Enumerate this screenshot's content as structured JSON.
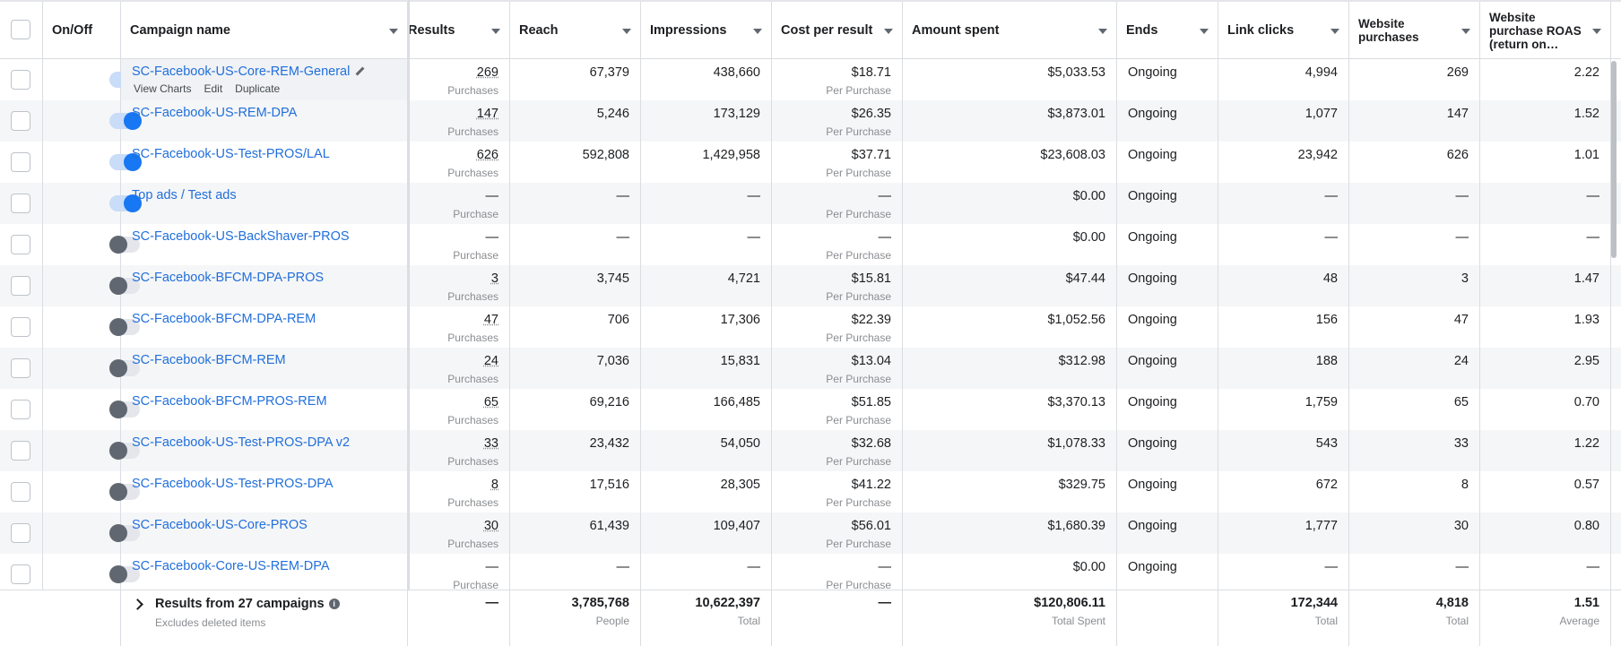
{
  "header": {
    "onoff": "On/Off",
    "campaign": "Campaign name",
    "results": "Results",
    "reach": "Reach",
    "impressions": "Impressions",
    "cost_per_result": "Cost per result",
    "amount_spent": "Amount spent",
    "ends": "Ends",
    "link_clicks": "Link clicks",
    "website_purchases": "Website purchases",
    "website_roas": "Website purchase ROAS (return on…"
  },
  "row_actions": {
    "view_charts": "View Charts",
    "edit": "Edit",
    "duplicate": "Duplicate"
  },
  "rows": [
    {
      "on": true,
      "name": "SC-Facebook-US-Core-REM-General",
      "results": "269",
      "results_unit": "Purchases",
      "reach": "67,379",
      "impressions": "438,660",
      "cpr": "$18.71",
      "cpr_unit": "Per Purchase",
      "spent": "$5,033.53",
      "ends": "Ongoing",
      "clicks": "4,994",
      "purchases": "269",
      "roas": "2.22"
    },
    {
      "on": true,
      "name": "SC-Facebook-US-REM-DPA",
      "results": "147",
      "results_unit": "Purchases",
      "reach": "5,246",
      "impressions": "173,129",
      "cpr": "$26.35",
      "cpr_unit": "Per Purchase",
      "spent": "$3,873.01",
      "ends": "Ongoing",
      "clicks": "1,077",
      "purchases": "147",
      "roas": "1.52"
    },
    {
      "on": true,
      "name": "SC-Facebook-US-Test-PROS/LAL",
      "results": "626",
      "results_unit": "Purchases",
      "reach": "592,808",
      "impressions": "1,429,958",
      "cpr": "$37.71",
      "cpr_unit": "Per Purchase",
      "spent": "$23,608.03",
      "ends": "Ongoing",
      "clicks": "23,942",
      "purchases": "626",
      "roas": "1.01"
    },
    {
      "on": true,
      "name": "Top ads / Test ads",
      "results": "—",
      "results_unit": "Purchase",
      "reach": "—",
      "impressions": "—",
      "cpr": "—",
      "cpr_unit": "Per Purchase",
      "spent": "$0.00",
      "ends": "Ongoing",
      "clicks": "—",
      "purchases": "—",
      "roas": "—"
    },
    {
      "on": false,
      "name": "SC-Facebook-US-BackShaver-PROS",
      "results": "—",
      "results_unit": "Purchase",
      "reach": "—",
      "impressions": "—",
      "cpr": "—",
      "cpr_unit": "Per Purchase",
      "spent": "$0.00",
      "ends": "Ongoing",
      "clicks": "—",
      "purchases": "—",
      "roas": "—"
    },
    {
      "on": false,
      "name": "SC-Facebook-BFCM-DPA-PROS",
      "results": "3",
      "results_unit": "Purchases",
      "reach": "3,745",
      "impressions": "4,721",
      "cpr": "$15.81",
      "cpr_unit": "Per Purchase",
      "spent": "$47.44",
      "ends": "Ongoing",
      "clicks": "48",
      "purchases": "3",
      "roas": "1.47"
    },
    {
      "on": false,
      "name": "SC-Facebook-BFCM-DPA-REM",
      "results": "47",
      "results_unit": "Purchases",
      "reach": "706",
      "impressions": "17,306",
      "cpr": "$22.39",
      "cpr_unit": "Per Purchase",
      "spent": "$1,052.56",
      "ends": "Ongoing",
      "clicks": "156",
      "purchases": "47",
      "roas": "1.93"
    },
    {
      "on": false,
      "name": "SC-Facebook-BFCM-REM",
      "results": "24",
      "results_unit": "Purchases",
      "reach": "7,036",
      "impressions": "15,831",
      "cpr": "$13.04",
      "cpr_unit": "Per Purchase",
      "spent": "$312.98",
      "ends": "Ongoing",
      "clicks": "188",
      "purchases": "24",
      "roas": "2.95"
    },
    {
      "on": false,
      "name": "SC-Facebook-BFCM-PROS-REM",
      "results": "65",
      "results_unit": "Purchases",
      "reach": "69,216",
      "impressions": "166,485",
      "cpr": "$51.85",
      "cpr_unit": "Per Purchase",
      "spent": "$3,370.13",
      "ends": "Ongoing",
      "clicks": "1,759",
      "purchases": "65",
      "roas": "0.70"
    },
    {
      "on": false,
      "name": "SC-Facebook-US-Test-PROS-DPA v2",
      "results": "33",
      "results_unit": "Purchases",
      "reach": "23,432",
      "impressions": "54,050",
      "cpr": "$32.68",
      "cpr_unit": "Per Purchase",
      "spent": "$1,078.33",
      "ends": "Ongoing",
      "clicks": "543",
      "purchases": "33",
      "roas": "1.22"
    },
    {
      "on": false,
      "name": "SC-Facebook-US-Test-PROS-DPA",
      "results": "8",
      "results_unit": "Purchases",
      "reach": "17,516",
      "impressions": "28,305",
      "cpr": "$41.22",
      "cpr_unit": "Per Purchase",
      "spent": "$329.75",
      "ends": "Ongoing",
      "clicks": "672",
      "purchases": "8",
      "roas": "0.57"
    },
    {
      "on": false,
      "name": "SC-Facebook-US-Core-PROS",
      "results": "30",
      "results_unit": "Purchases",
      "reach": "61,439",
      "impressions": "109,407",
      "cpr": "$56.01",
      "cpr_unit": "Per Purchase",
      "spent": "$1,680.39",
      "ends": "Ongoing",
      "clicks": "1,777",
      "purchases": "30",
      "roas": "0.80"
    },
    {
      "on": false,
      "name": "SC-Facebook-Core-US-REM-DPA",
      "results": "—",
      "results_unit": "Purchase",
      "reach": "—",
      "impressions": "—",
      "cpr": "—",
      "cpr_unit": "Per Purchase",
      "spent": "$0.00",
      "ends": "Ongoing",
      "clicks": "—",
      "purchases": "—",
      "roas": "—"
    }
  ],
  "footer": {
    "title": "Results from 27 campaigns",
    "subtitle": "Excludes deleted items",
    "results": "—",
    "reach": "3,785,768",
    "reach_unit": "People",
    "impressions": "10,622,397",
    "impressions_unit": "Total",
    "cpr": "—",
    "spent": "$120,806.11",
    "spent_unit": "Total Spent",
    "clicks": "172,344",
    "clicks_unit": "Total",
    "purchases": "4,818",
    "purchases_unit": "Total",
    "roas": "1.51",
    "roas_unit": "Average"
  }
}
